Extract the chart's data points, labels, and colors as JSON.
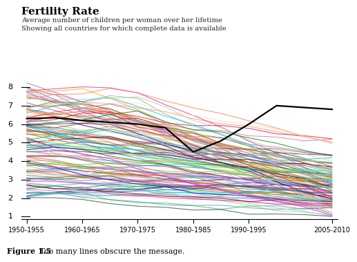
{
  "title": "Fertility Rate",
  "subtitle1": "Average number of children per woman over her lifetime",
  "subtitle2": "Showing all countries for which complete data is available",
  "caption_bold": "Figure 1.5",
  "caption_normal": " Too many lines obscure the message.",
  "x_labels": [
    "1950-1955",
    "1960-1965",
    "1970-1975",
    "1980-1985",
    "1990-1995",
    "2005-2010"
  ],
  "x_tick_positions": [
    0,
    2,
    4,
    6,
    8,
    11
  ],
  "ylim": [
    0.85,
    8.7
  ],
  "yticks": [
    1,
    2,
    3,
    4,
    5,
    6,
    7,
    8
  ],
  "background_color": "#ffffff",
  "line_alpha": 0.75,
  "line_width": 0.8,
  "num_countries": 120,
  "seed": 42,
  "n_periods": 12,
  "colors": [
    "#e41a1c",
    "#377eb8",
    "#4daf4a",
    "#984ea3",
    "#ff7f00",
    "#a65628",
    "#f781bf",
    "#888888",
    "#66c2a5",
    "#fc8d62",
    "#8da0cb",
    "#e78ac3",
    "#a6d854",
    "#d4b700",
    "#8b7355",
    "#aaaaaa",
    "#1b9e77",
    "#d95f02",
    "#7570b3",
    "#e7298a",
    "#66a61e",
    "#e6ab02",
    "#a6761d",
    "#555555",
    "#00ced1",
    "#ff69b4",
    "#9370db",
    "#20b2aa",
    "#ff6347",
    "#4169e1",
    "#32cd32",
    "#dc143c",
    "#00bfff",
    "#ff8c00",
    "#8b008b",
    "#006400",
    "#b8860b",
    "#483d8b",
    "#c71585",
    "#008b8b",
    "#556b2f",
    "#ff4500",
    "#da70d6",
    "#7b68ee",
    "#00fa9a",
    "#48d1cc",
    "#c0c0c0",
    "#708090",
    "#2e8b57",
    "#d2691e",
    "#6495ed",
    "#ffa500",
    "#9932cc",
    "#8fbc8f",
    "#e9967a",
    "#4682b4",
    "#b22222",
    "#5f9ea0",
    "#ff7f50",
    "#6a5acd",
    "#3cb371",
    "#ba55d3",
    "#cd853f",
    "#191970",
    "#f08080",
    "#90ee90",
    "#add8e6",
    "#ffb6c1",
    "#dda0dd",
    "#b0c4de",
    "#98fb98",
    "#87ceeb",
    "#ffa07a",
    "#20b2aa",
    "#87cefa",
    "#778899",
    "#b0e0e6",
    "#00ced1",
    "#7b68ee",
    "#db7093",
    "#afeeee",
    "#eee8aa",
    "#98fb98",
    "#afeeee",
    "#db7093",
    "#ffdab9",
    "#cd5c5c",
    "#4b0082",
    "#40e0d0",
    "#ee82ee",
    "#f5deb3",
    "#ff00ff",
    "#1e90ff",
    "#ff1493",
    "#00bfff",
    "#696969",
    "#808000",
    "#6b8e23",
    "#b8860b",
    "#8b4513",
    "#2f4f4f",
    "#800000",
    "#191970",
    "#696969",
    "#bc8f8f",
    "#f4a460",
    "#daa520",
    "#808080",
    "#008080",
    "#c0c0c0",
    "#800080",
    "#ff0000",
    "#00ff00",
    "#0000ff",
    "#ffff00",
    "#00ffff",
    "#ff00ff",
    "#c0c0c0",
    "#800000",
    "#008000",
    "#000080",
    "#808000",
    "#800080",
    "#008080",
    "#d2b48c",
    "#a0522d",
    "#cd853f",
    "#b8860b"
  ]
}
